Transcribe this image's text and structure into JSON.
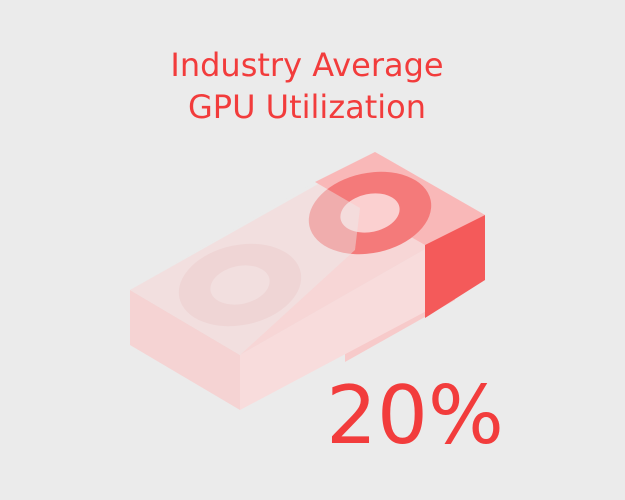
{
  "title": {
    "line1": "Industry Average",
    "line2": "GPU Utilization"
  },
  "stat": {
    "value": "20%"
  }
}
